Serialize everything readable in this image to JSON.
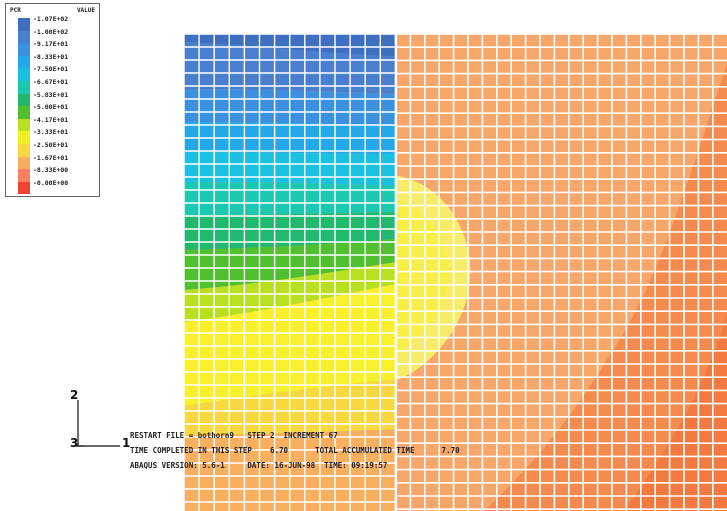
{
  "legend": {
    "title": "PCR",
    "unit": "VALUE",
    "levels": [
      {
        "label": "-1.07E+02",
        "color": "#3f6fc0"
      },
      {
        "label": "-1.00E+02",
        "color": "#4a7fd0"
      },
      {
        "label": "-9.17E+01",
        "color": "#3c90e0"
      },
      {
        "label": "-8.33E+01",
        "color": "#25a8e8"
      },
      {
        "label": "-7.50E+01",
        "color": "#1cc0e0"
      },
      {
        "label": "-6.67E+01",
        "color": "#1cc8b0"
      },
      {
        "label": "-5.83E+01",
        "color": "#22b870"
      },
      {
        "label": "-5.00E+01",
        "color": "#50c030"
      },
      {
        "label": "-4.17E+01",
        "color": "#b8e020"
      },
      {
        "label": "-3.33E+01",
        "color": "#f0f020"
      },
      {
        "label": "-2.50E+01",
        "color": "#f8d840"
      },
      {
        "label": "-1.67E+01",
        "color": "#f8b060"
      },
      {
        "label": "-8.33E+00",
        "color": "#f88060"
      },
      {
        "label": "-0.00E+00",
        "color": "#f04030"
      }
    ]
  },
  "triad": {
    "axis_2": "2",
    "axis_1": "1",
    "axis_3": "3"
  },
  "info": {
    "line1": "RESTART FILE = bothorn9   STEP 2  INCREMENT 67",
    "line2": "TIME COMPLETED IN THIS STEP    6.70      TOTAL ACCUMULATED TIME      7.70",
    "line3": "ABAQUS VERSION: 5.6-1     DATE: 16-JUN-98  TIME: 09:19:57"
  },
  "contour_colors": {
    "orange": "#f8a66a",
    "dark_orange": "#f58a4e",
    "yellow": "#f8f02c",
    "pale_yellow": "#f6ec6a",
    "grid_line": "#ffffff"
  }
}
